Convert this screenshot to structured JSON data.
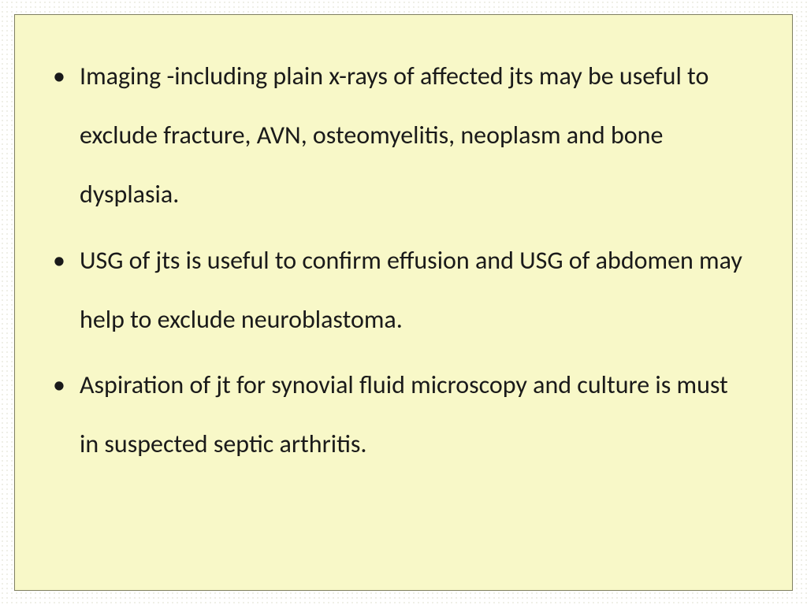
{
  "slide": {
    "background_color": "#f8f8c8",
    "border_color": "#808060",
    "dot_pattern_color": "#c0c0a0",
    "text_color": "#1a1a1a",
    "font_size_pt": 24,
    "line_height": 2.35,
    "bullets": [
      "Imaging -including plain x-rays of affected jts may be useful to exclude fracture, AVN, osteomyelitis, neoplasm and bone dysplasia.",
      "USG of jts is useful to confirm effusion and  USG of abdomen may help to exclude neuroblastoma.",
      "Aspiration of jt for synovial fluid microscopy and culture is must in suspected septic arthritis."
    ]
  }
}
